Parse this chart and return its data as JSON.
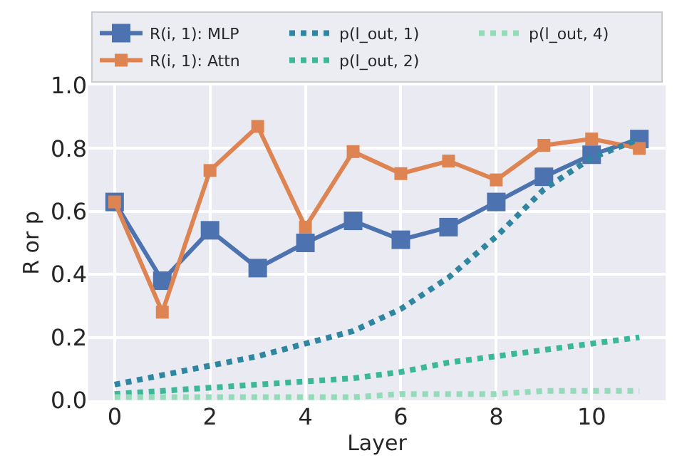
{
  "chart_data": {
    "type": "line",
    "xlabel": "Layer",
    "ylabel": "R or p",
    "x": [
      0,
      1,
      2,
      3,
      4,
      5,
      6,
      7,
      8,
      9,
      10,
      11
    ],
    "xlim": [
      -0.55,
      11.55
    ],
    "xticks": [
      0,
      2,
      4,
      6,
      8,
      10
    ],
    "ylim": [
      0,
      1.0
    ],
    "yticks": [
      {
        "value": 0,
        "label": "0.0"
      },
      0.2,
      0.4,
      0.6,
      0.8,
      {
        "value": 1,
        "label": "1.0"
      }
    ],
    "grid": true,
    "legend": "top",
    "series": [
      {
        "name": "R(i, 1): MLP",
        "color": "#4c72b0",
        "marker": "square",
        "line_style": "solid",
        "values": [
          0.63,
          0.38,
          0.54,
          0.42,
          0.5,
          0.57,
          0.51,
          0.55,
          0.63,
          0.71,
          0.78,
          0.83
        ]
      },
      {
        "name": "R(i, 1): Attn",
        "color": "#dd8452",
        "marker": "square",
        "line_style": "solid",
        "values": [
          0.63,
          0.28,
          0.73,
          0.87,
          0.55,
          0.79,
          0.72,
          0.76,
          0.7,
          0.81,
          0.83,
          0.8
        ]
      },
      {
        "name": "p(l_out, 1)",
        "color": "#2e86a0",
        "marker": "none",
        "line_style": "dotted",
        "values": [
          0.05,
          0.08,
          0.11,
          0.14,
          0.18,
          0.22,
          0.29,
          0.39,
          0.52,
          0.67,
          0.77,
          0.83
        ]
      },
      {
        "name": "p(l_out, 2)",
        "color": "#3bb79a",
        "marker": "none",
        "line_style": "dotted",
        "values": [
          0.02,
          0.03,
          0.04,
          0.05,
          0.06,
          0.07,
          0.09,
          0.12,
          0.14,
          0.16,
          0.18,
          0.2
        ]
      },
      {
        "name": "p(l_out, 4)",
        "color": "#93dcb8",
        "marker": "none",
        "line_style": "dotted",
        "values": [
          0.01,
          0.01,
          0.01,
          0.01,
          0.01,
          0.01,
          0.02,
          0.02,
          0.02,
          0.03,
          0.03,
          0.03
        ]
      }
    ]
  }
}
